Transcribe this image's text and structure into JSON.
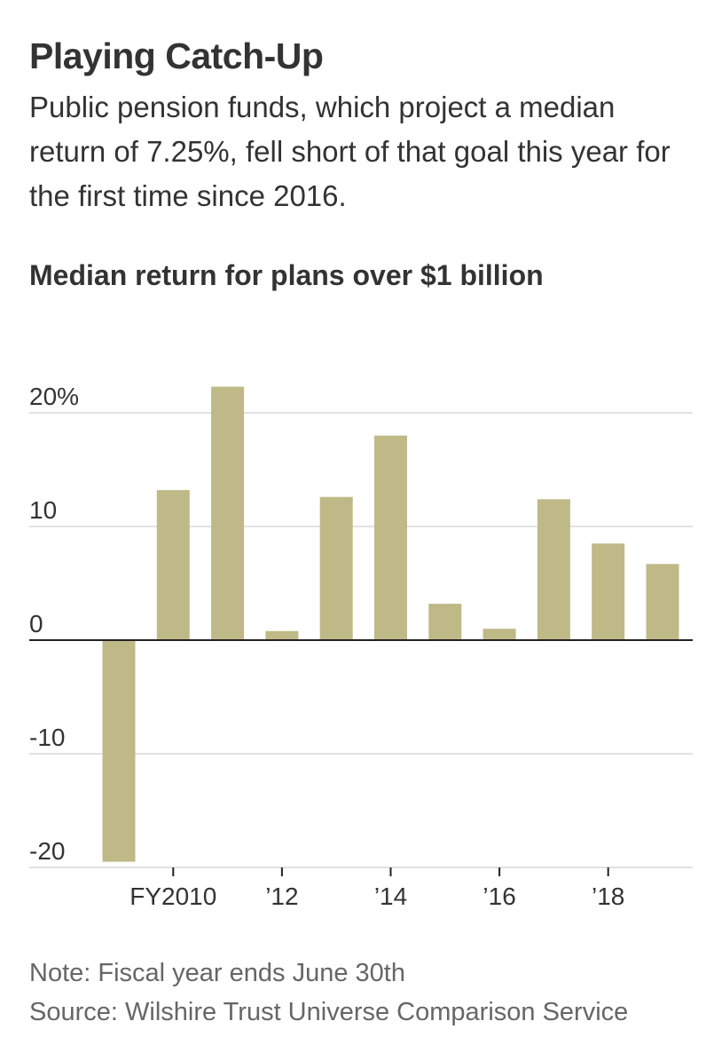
{
  "header": {
    "headline": "Playing Catch-Up",
    "dek": "Public pension funds, which project a median return of 7.25%, fell short of that goal this year for the first time since 2016.",
    "chart_title": "Median return for plans over $1 billion"
  },
  "footer": {
    "note": "Note: Fiscal year ends June 30th",
    "source": "Source: Wilshire Trust Universe Comparison Service"
  },
  "colors": {
    "bar": "#bfb987",
    "grid": "#e2e2e2",
    "zero_line": "#222222",
    "text": "#333333",
    "muted": "#666666"
  },
  "chart_data": {
    "type": "bar",
    "title": "Median return for plans over $1 billion",
    "categories": [
      "2009",
      "2010",
      "2011",
      "2012",
      "2013",
      "2014",
      "2015",
      "2016",
      "2017",
      "2018",
      "2019"
    ],
    "values": [
      -19.5,
      13.2,
      22.3,
      0.8,
      12.6,
      18.0,
      3.2,
      1.0,
      12.4,
      8.5,
      6.7
    ],
    "x_tick_labels": [
      {
        "category": "2010",
        "label": "FY2010"
      },
      {
        "category": "2012",
        "label": "’12"
      },
      {
        "category": "2014",
        "label": "’14"
      },
      {
        "category": "2016",
        "label": "’16"
      },
      {
        "category": "2018",
        "label": "’18"
      }
    ],
    "y_ticks": [
      {
        "value": 20,
        "label": "20%"
      },
      {
        "value": 10,
        "label": "10"
      },
      {
        "value": 0,
        "label": "0"
      },
      {
        "value": -10,
        "label": "-10"
      },
      {
        "value": -20,
        "label": "-20"
      }
    ],
    "ylim": [
      -20,
      20
    ],
    "grid": true,
    "xlabel": "",
    "ylabel": ""
  }
}
